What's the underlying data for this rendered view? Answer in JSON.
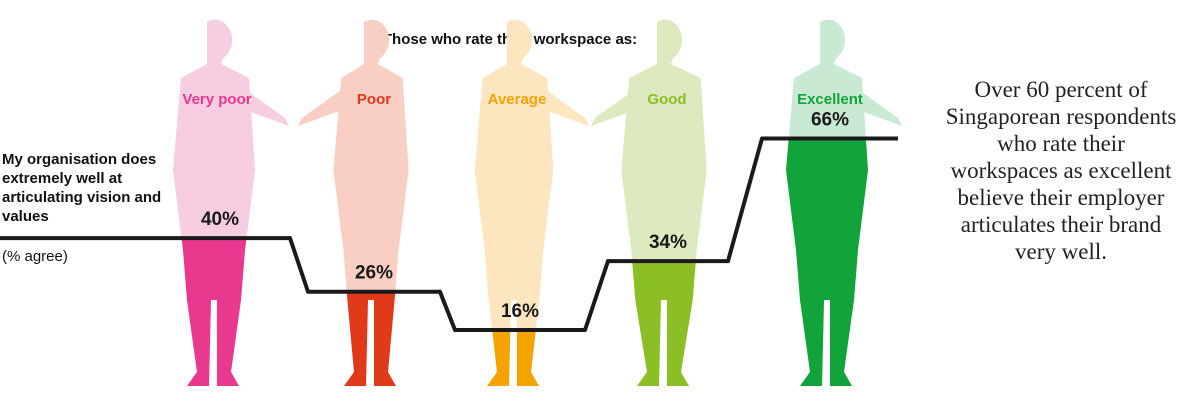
{
  "chart_data": {
    "type": "step",
    "title": "Those who rate their workspace as:",
    "y_label": "My organisation does extremely well at articulating vision and values",
    "unit_label": "(% agree)",
    "annotation": "Over 60 percent of Singaporean respondents who rate their workspaces as excellent believe their employer articulates their brand very well.",
    "categories": [
      "Very poor",
      "Poor",
      "Average",
      "Good",
      "Excellent"
    ],
    "values": [
      40,
      26,
      16,
      34,
      66
    ],
    "value_labels": [
      "40%",
      "26%",
      "16%",
      "34%",
      "66%"
    ],
    "colors": [
      "#e8398f",
      "#e03a1a",
      "#f5a300",
      "#8cbf26",
      "#12a33b"
    ],
    "light_colors": [
      "#f7cde2",
      "#f9cfc4",
      "#fde6bf",
      "#dde9bf",
      "#c8ead3"
    ],
    "line_color": "#1a1a1a"
  }
}
